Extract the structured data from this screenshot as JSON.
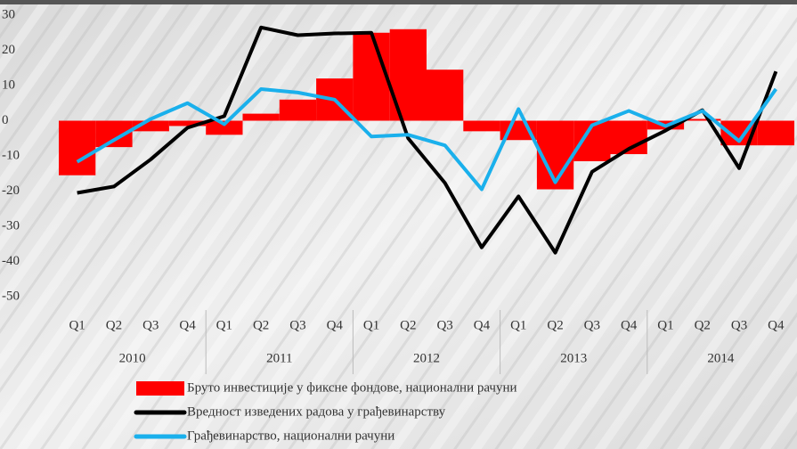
{
  "chart_data": {
    "type": "bar-line",
    "categories": [
      "Q1",
      "Q2",
      "Q3",
      "Q4",
      "Q1",
      "Q2",
      "Q3",
      "Q4",
      "Q1",
      "Q2",
      "Q3",
      "Q4",
      "Q1",
      "Q2",
      "Q3",
      "Q4",
      "Q1",
      "Q2",
      "Q3",
      "Q4"
    ],
    "years": [
      "2010",
      "2011",
      "2012",
      "2013",
      "2014"
    ],
    "series": [
      {
        "name": "Бруто инвестиције у фиксне фондове, национални рачуни",
        "type": "bar",
        "color": "#ff0000",
        "values": [
          -15.5,
          -7.5,
          -3,
          -1.5,
          -4,
          2,
          6,
          12,
          25,
          26,
          14.5,
          -3,
          -5.5,
          -19.5,
          -11.5,
          -9.5,
          -2.5,
          0.5,
          -7,
          -7
        ]
      },
      {
        "name": "Вредност изведених радова у грађевинарству",
        "type": "line",
        "color": "#000000",
        "values": [
          -20.5,
          -18.7,
          -11,
          -2,
          1.3,
          26.5,
          24.3,
          24.8,
          25,
          -5,
          -17.7,
          -36,
          -21.5,
          -37.5,
          -14.5,
          -8,
          -2.8,
          3,
          -13.5,
          14
        ]
      },
      {
        "name": "Грађевинарство, национални рачуни",
        "type": "line",
        "color": "#1ab0ec",
        "values": [
          -11.7,
          -5.5,
          0.5,
          5,
          -1,
          9,
          8,
          6,
          -4.5,
          -4,
          -7,
          -19.5,
          3.3,
          -17.5,
          -1.3,
          2.8,
          -1.5,
          2.8,
          -5.8,
          9
        ]
      }
    ],
    "ylim": [
      -50,
      30
    ],
    "yticks": [
      -50,
      -40,
      -30,
      -20,
      -10,
      0,
      10,
      20,
      30
    ],
    "grid": false
  }
}
